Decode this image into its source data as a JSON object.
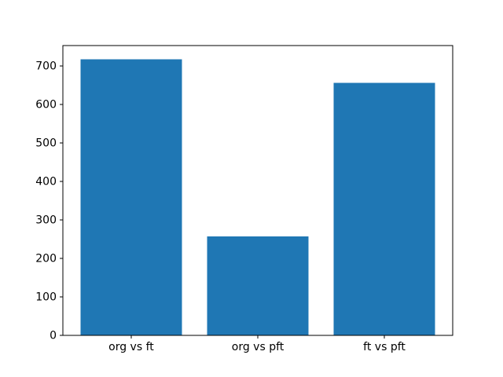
{
  "chart_data": {
    "type": "bar",
    "categories": [
      "org vs ft",
      "org vs pft",
      "ft vs pft"
    ],
    "values": [
      717,
      257,
      656
    ],
    "title": "",
    "xlabel": "",
    "ylabel": "",
    "ylim": [
      0,
      753
    ],
    "yticks": [
      0,
      100,
      200,
      300,
      400,
      500,
      600,
      700
    ],
    "bar_color": "#1f77b4",
    "axis_color": "#000000",
    "background_color": "#ffffff",
    "grid": false,
    "legend": "none",
    "bar_relative_width": 0.8
  }
}
